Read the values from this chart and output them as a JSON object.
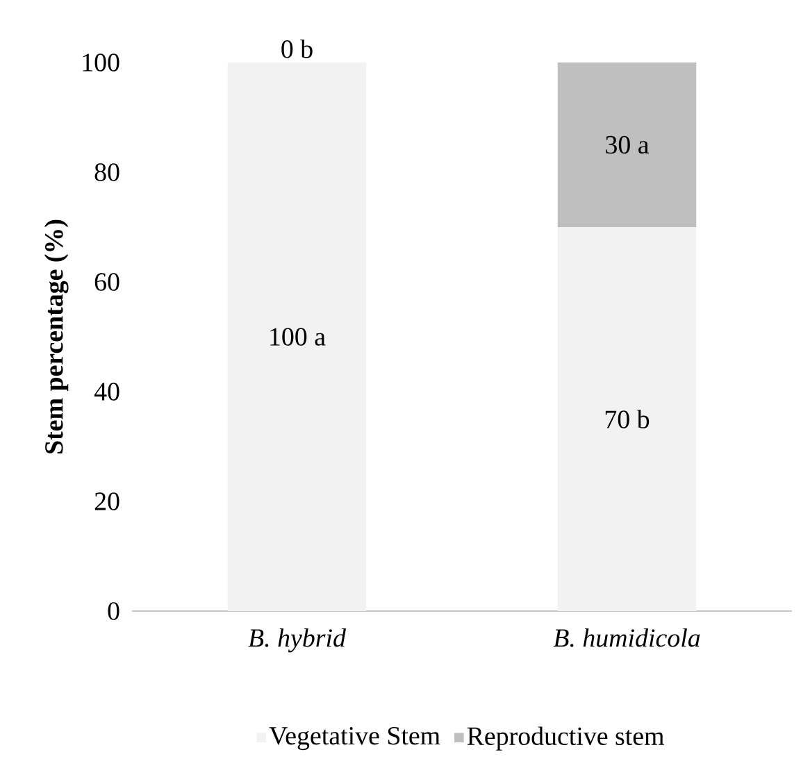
{
  "chart_data": {
    "type": "bar",
    "stacked": true,
    "ylabel": "Stem percentage (%)",
    "categories": [
      "B. hybrid",
      "B. humidicola"
    ],
    "series": [
      {
        "name": "Vegetative Stem",
        "color": "#f2f2f2",
        "values": [
          100,
          70
        ],
        "value_labels": [
          "100 a",
          "70 b"
        ]
      },
      {
        "name": "Reproductive stem",
        "color": "#bfbfbf",
        "values": [
          0,
          30
        ],
        "value_labels": [
          "0 b",
          "30 a"
        ]
      }
    ],
    "ylim": [
      0,
      100
    ],
    "yticks": [
      0,
      20,
      40,
      60,
      80,
      100
    ],
    "legend": "bottom"
  }
}
